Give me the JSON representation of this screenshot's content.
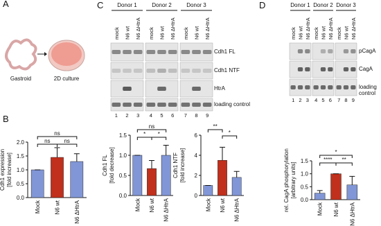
{
  "panel_labels": [
    "A",
    "B",
    "C",
    "D"
  ],
  "panel_a": {
    "labels": [
      "Gastroid",
      "2D culture"
    ]
  },
  "blot_c": {
    "donors": [
      "Donor 1",
      "Donor 2",
      "Donor 3"
    ],
    "lanes": [
      "mock",
      "N6 wt",
      "N6 ΔHtrA"
    ],
    "lane_numbers": [
      1,
      2,
      3,
      4,
      5,
      6,
      7,
      8,
      9
    ],
    "bands": [
      "Cdh1 FL",
      "Cdh1 NTF",
      "HtrA",
      "loading control"
    ]
  },
  "blot_d": {
    "donors": [
      "Donor 1",
      "Donor 2",
      "Donor 3"
    ],
    "lanes": [
      "mock",
      "N6 wt",
      "N6 ΔHtrA"
    ],
    "lane_numbers": [
      1,
      2,
      3,
      4,
      5,
      6,
      7,
      8,
      9
    ],
    "bands": [
      "pCagA",
      "CagA",
      "loading control"
    ]
  },
  "chart_data": [
    {
      "type": "bar",
      "y_label": [
        "Cdh1 expression",
        "[fold increase]"
      ],
      "categories": [
        "Mock",
        "N6 wt",
        "N6 ΔHtrA"
      ],
      "values": [
        1.0,
        1.45,
        1.3
      ],
      "errors": [
        0,
        0.35,
        0.28
      ],
      "colors": [
        "#8196d6",
        "#c1301c",
        "#8196d6"
      ],
      "ylim": [
        0,
        2
      ],
      "yticks": [
        {
          "value": 0,
          "label": "0.0"
        },
        0.5,
        {
          "value": 1,
          "label": "1.0"
        },
        1.5,
        {
          "value": 2,
          "label": "2.0"
        }
      ],
      "brackets": [
        {
          "label": "ns",
          "pair": [
            0,
            2
          ]
        },
        {
          "label": "ns",
          "pair": [
            0,
            1
          ]
        },
        {
          "label": "ns",
          "pair": [
            1,
            2
          ]
        }
      ]
    },
    {
      "type": "bar",
      "y_label": [
        "Cdh1 FL",
        "[fold decrease]"
      ],
      "categories": [
        "Mock",
        "N6 wt",
        "N6 ΔHtrA"
      ],
      "values": [
        1.0,
        0.67,
        1.0
      ],
      "errors": [
        0,
        0.2,
        0.25
      ],
      "colors": [
        "#8196d6",
        "#c1301c",
        "#8196d6"
      ],
      "ylim": [
        0,
        1.5
      ],
      "yticks": [
        {
          "value": 0,
          "label": "0.0"
        },
        0.5,
        {
          "value": 1,
          "label": "1.0"
        },
        1.5
      ],
      "brackets": [
        {
          "label": "ns",
          "pair": [
            0,
            2
          ]
        },
        {
          "label": "*",
          "pair": [
            0,
            1
          ]
        },
        {
          "label": "*",
          "pair": [
            1,
            2
          ]
        }
      ]
    },
    {
      "type": "bar",
      "y_label": [
        "Cdh1 NTF",
        "[fold increase]"
      ],
      "categories": [
        "Mock",
        "N6 wt",
        "N6 ΔHtrA"
      ],
      "values": [
        1.0,
        3.5,
        1.8
      ],
      "errors": [
        0,
        1.3,
        0.6
      ],
      "colors": [
        "#8196d6",
        "#c1301c",
        "#8196d6"
      ],
      "ylim": [
        0,
        6
      ],
      "yticks": [
        0,
        2,
        4,
        6
      ],
      "brackets": [
        {
          "label": "**",
          "pair": [
            0,
            1
          ]
        },
        {
          "label": "*",
          "pair": [
            1,
            2
          ]
        }
      ]
    },
    {
      "type": "bar",
      "y_label": [
        "rel. CagA phosphorylation",
        "[arbitrary units]"
      ],
      "categories": [
        "Mock",
        "N6 wt",
        "N6 ΔHtrA"
      ],
      "values": [
        0.25,
        1.0,
        0.57
      ],
      "errors": [
        0.1,
        0,
        0.33
      ],
      "colors": [
        "#8196d6",
        "#c1301c",
        "#8196d6"
      ],
      "ylim": [
        0,
        1.5
      ],
      "yticks": [
        {
          "value": 0,
          "label": "0.0"
        },
        0.5,
        {
          "value": 1,
          "label": "1.0"
        },
        1.5
      ],
      "brackets": [
        {
          "label": "*",
          "pair": [
            0,
            2
          ]
        },
        {
          "label": "****",
          "pair": [
            0,
            1
          ]
        },
        {
          "label": "**",
          "pair": [
            1,
            2
          ]
        }
      ]
    }
  ]
}
